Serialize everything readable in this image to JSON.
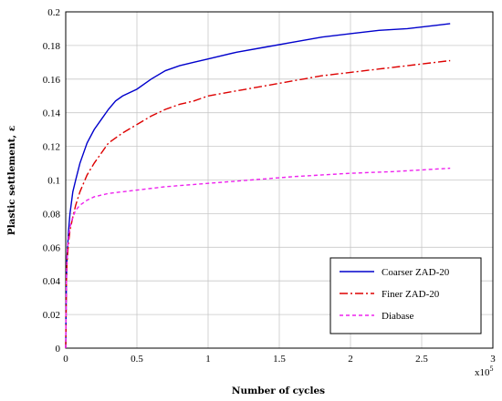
{
  "chart_data": {
    "type": "line",
    "xlabel": "Number of cycles",
    "ylabel": "Plastic settlement, ε",
    "x_multiplier": "x10",
    "x_multiplier_exp": "5",
    "xlim": [
      0,
      3
    ],
    "ylim": [
      0,
      0.2
    ],
    "x_ticks": [
      "0",
      "0.5",
      "1",
      "1.5",
      "2",
      "2.5",
      "3"
    ],
    "y_ticks": [
      "0",
      "0.02",
      "0.04",
      "0.06",
      "0.08",
      "0.1",
      "0.12",
      "0.14",
      "0.16",
      "0.18",
      "0.2"
    ],
    "grid": true,
    "legend_position": "bottom-right",
    "series": [
      {
        "name": "Coarser ZAD-20",
        "color": "#0000cc",
        "dash": "solid",
        "x": [
          0,
          0.005,
          0.01,
          0.02,
          0.03,
          0.05,
          0.07,
          0.1,
          0.15,
          0.2,
          0.25,
          0.3,
          0.35,
          0.4,
          0.5,
          0.6,
          0.7,
          0.8,
          0.9,
          1.0,
          1.2,
          1.4,
          1.6,
          1.8,
          2.0,
          2.2,
          2.4,
          2.6,
          2.7
        ],
        "y": [
          0,
          0.04,
          0.055,
          0.07,
          0.08,
          0.093,
          0.1,
          0.11,
          0.122,
          0.13,
          0.136,
          0.142,
          0.147,
          0.15,
          0.154,
          0.16,
          0.165,
          0.168,
          0.17,
          0.172,
          0.176,
          0.179,
          0.182,
          0.185,
          0.187,
          0.189,
          0.19,
          0.192,
          0.193
        ]
      },
      {
        "name": "Finer ZAD-20",
        "color": "#dd0000",
        "dash": "longdash",
        "x": [
          0,
          0.005,
          0.01,
          0.02,
          0.03,
          0.05,
          0.07,
          0.1,
          0.15,
          0.2,
          0.25,
          0.3,
          0.4,
          0.5,
          0.6,
          0.7,
          0.8,
          0.9,
          1.0,
          1.2,
          1.4,
          1.6,
          1.8,
          2.0,
          2.2,
          2.4,
          2.6,
          2.7
        ],
        "y": [
          0,
          0.04,
          0.052,
          0.063,
          0.07,
          0.078,
          0.085,
          0.093,
          0.103,
          0.11,
          0.116,
          0.122,
          0.128,
          0.133,
          0.138,
          0.142,
          0.145,
          0.147,
          0.15,
          0.153,
          0.156,
          0.159,
          0.162,
          0.164,
          0.166,
          0.168,
          0.17,
          0.171
        ]
      },
      {
        "name": "Diabase",
        "color": "#ee22ee",
        "dash": "shortdash",
        "x": [
          0,
          0.005,
          0.01,
          0.02,
          0.03,
          0.05,
          0.07,
          0.1,
          0.15,
          0.2,
          0.3,
          0.4,
          0.5,
          0.7,
          1.0,
          1.3,
          1.6,
          2.0,
          2.3,
          2.7
        ],
        "y": [
          0,
          0.045,
          0.057,
          0.066,
          0.072,
          0.078,
          0.082,
          0.085,
          0.088,
          0.09,
          0.092,
          0.093,
          0.094,
          0.096,
          0.098,
          0.1,
          0.102,
          0.104,
          0.105,
          0.107
        ]
      }
    ]
  }
}
